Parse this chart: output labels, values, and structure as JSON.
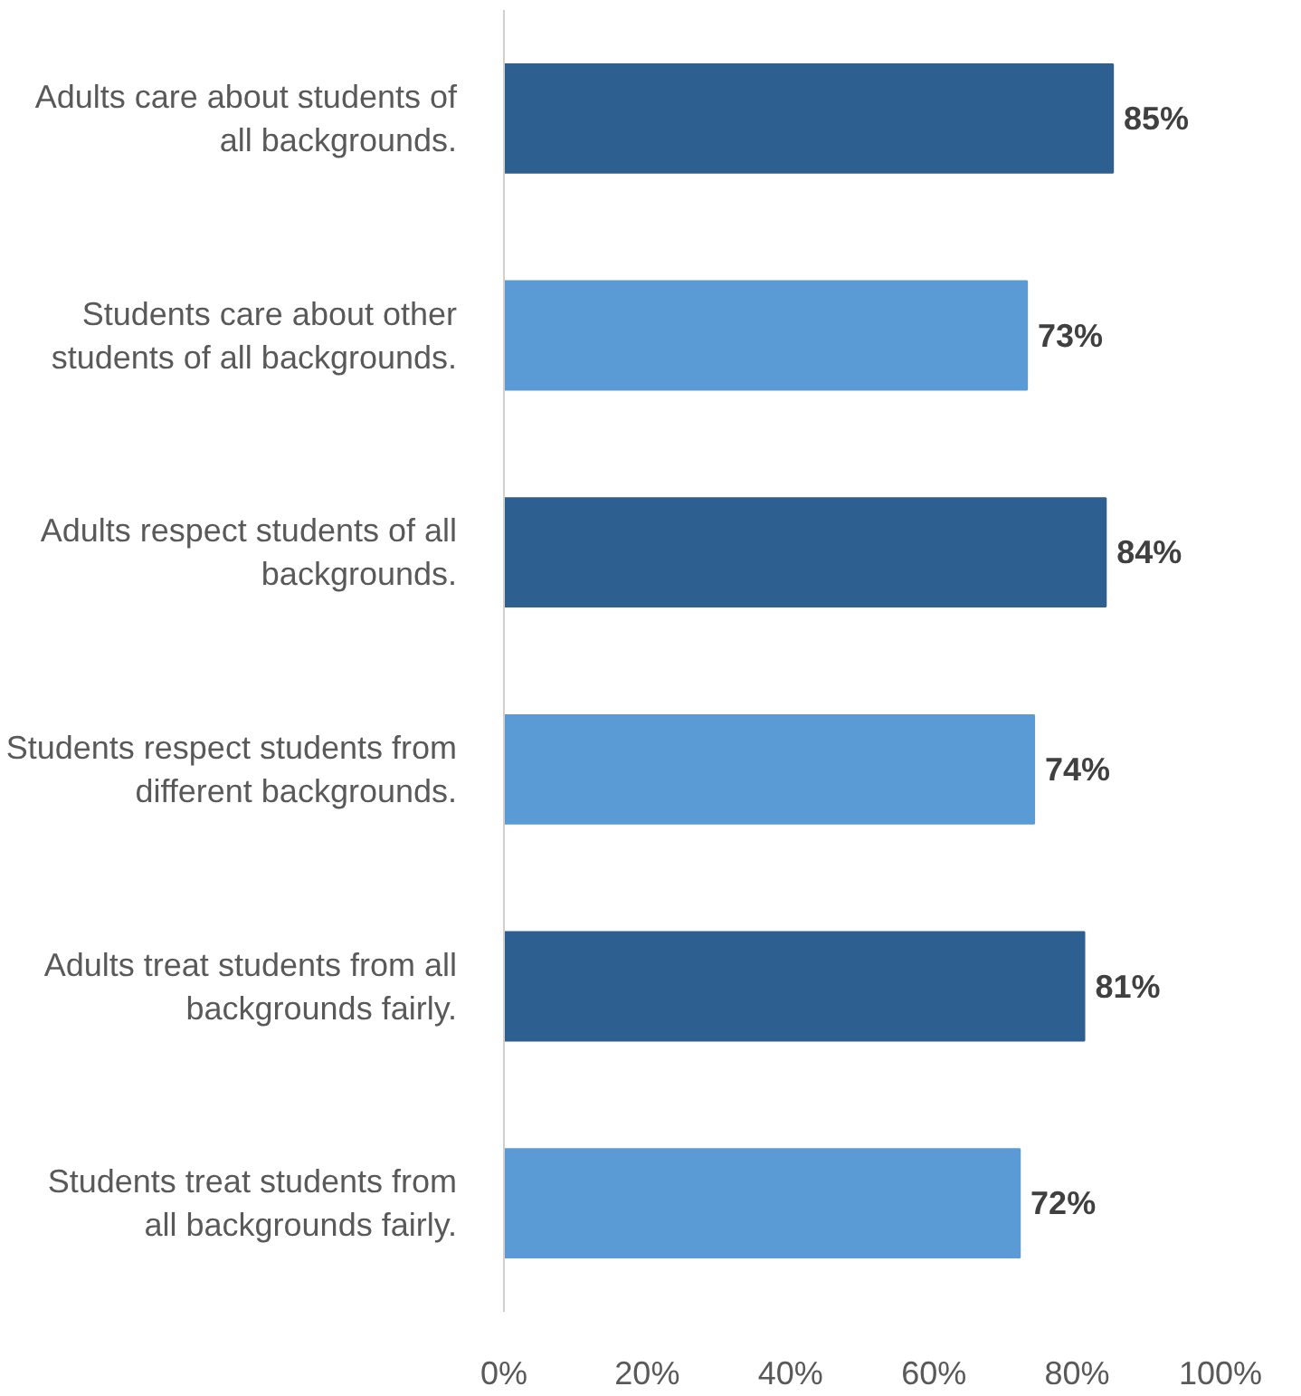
{
  "chart_data": {
    "type": "bar",
    "orientation": "horizontal",
    "categories": [
      "Adults care about students of all backgrounds.",
      "Students care about other students of all backgrounds.",
      "Adults respect students of all backgrounds.",
      "Students respect students from different backgrounds.",
      "Adults treat students from all backgrounds fairly.",
      "Students treat students from all backgrounds fairly."
    ],
    "values": [
      85,
      73,
      84,
      74,
      81,
      72
    ],
    "colors": [
      "#2e5f91",
      "#5b9bd5",
      "#2e5f91",
      "#5b9bd5",
      "#2e5f91",
      "#5b9bd5"
    ],
    "value_labels": [
      "85%",
      "73%",
      "84%",
      "74%",
      "81%",
      "72%"
    ],
    "xlim": [
      0,
      100
    ],
    "xticks": [
      {
        "value": 0,
        "label": "0%"
      },
      {
        "value": 20,
        "label": "20%"
      },
      {
        "value": 40,
        "label": "40%"
      },
      {
        "value": 60,
        "label": "60%"
      },
      {
        "value": 80,
        "label": "80%"
      },
      {
        "value": 100,
        "label": "100%"
      }
    ],
    "grid": false
  }
}
